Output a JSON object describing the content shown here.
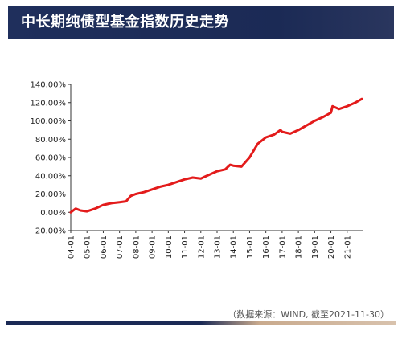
{
  "header": {
    "title": "中长期纯债型基金指数历史走势"
  },
  "source_note": "（数据来源：WIND, 截至2021-11-30）",
  "colors": {
    "header_bg": "#1b2a55",
    "line": "#e31b1b",
    "accent": "#c9aa8d"
  },
  "chart_data": {
    "type": "line",
    "title": "",
    "xlabel": "",
    "ylabel": "",
    "ylim": [
      -0.2,
      1.4
    ],
    "grid": false,
    "y_ticks": [
      "-20.00%",
      "0.00%",
      "20.00%",
      "40.00%",
      "60.00%",
      "80.00%",
      "100.00%",
      "120.00%",
      "140.00%"
    ],
    "x_ticks": [
      "04-01",
      "05-01",
      "06-01",
      "07-01",
      "08-01",
      "09-01",
      "10-01",
      "11-01",
      "12-01",
      "13-01",
      "14-01",
      "15-01",
      "16-01",
      "17-01",
      "18-01",
      "19-01",
      "20-01",
      "21-01"
    ],
    "series": [
      {
        "x": [
          2004.0,
          2004.3,
          2004.6,
          2005.0,
          2005.5,
          2006.0,
          2006.5,
          2007.0,
          2007.4,
          2007.7,
          2008.0,
          2008.5,
          2009.0,
          2009.5,
          2010.0,
          2010.5,
          2011.0,
          2011.5,
          2012.0,
          2012.5,
          2013.0,
          2013.5,
          2013.8,
          2014.0,
          2014.5,
          2015.0,
          2015.5,
          2016.0,
          2016.5,
          2016.9,
          2017.0,
          2017.5,
          2018.0,
          2018.5,
          2019.0,
          2019.5,
          2020.0,
          2020.1,
          2020.5,
          2021.0,
          2021.5,
          2021.9
        ],
        "y": [
          0.0,
          0.04,
          0.02,
          0.01,
          0.04,
          0.08,
          0.1,
          0.11,
          0.12,
          0.18,
          0.2,
          0.22,
          0.25,
          0.28,
          0.3,
          0.33,
          0.36,
          0.38,
          0.37,
          0.41,
          0.45,
          0.47,
          0.52,
          0.51,
          0.5,
          0.6,
          0.75,
          0.82,
          0.85,
          0.9,
          0.88,
          0.86,
          0.9,
          0.95,
          1.0,
          1.04,
          1.09,
          1.16,
          1.13,
          1.16,
          1.2,
          1.24
        ]
      }
    ]
  }
}
